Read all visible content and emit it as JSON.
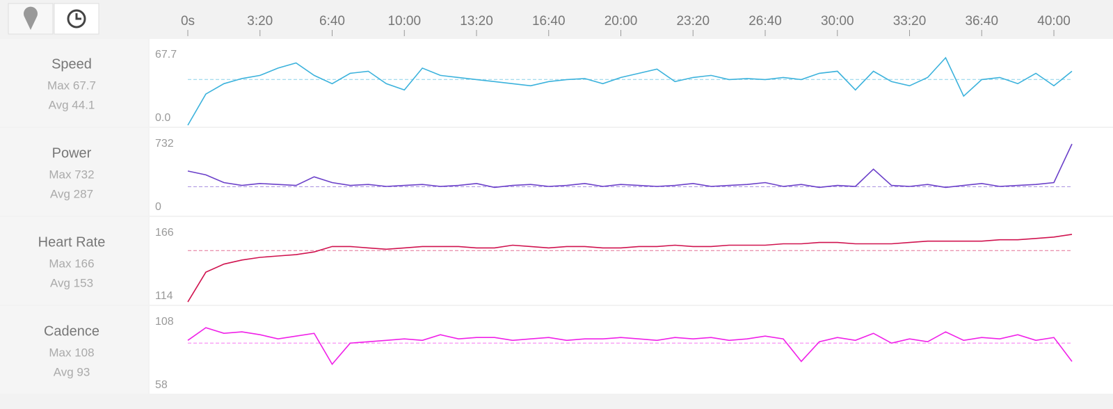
{
  "x_axis": {
    "xlim": [
      0,
      2452
    ],
    "xticks": [
      {
        "value": 0,
        "label": "0s"
      },
      {
        "value": 200,
        "label": "3:20"
      },
      {
        "value": 400,
        "label": "6:40"
      },
      {
        "value": 600,
        "label": "10:00"
      },
      {
        "value": 800,
        "label": "13:20"
      },
      {
        "value": 1000,
        "label": "16:40"
      },
      {
        "value": 1200,
        "label": "20:00"
      },
      {
        "value": 1400,
        "label": "23:20"
      },
      {
        "value": 1600,
        "label": "26:40"
      },
      {
        "value": 1800,
        "label": "30:00"
      },
      {
        "value": 2000,
        "label": "33:20"
      },
      {
        "value": 2200,
        "label": "36:40"
      },
      {
        "value": 2400,
        "label": "40:00"
      }
    ],
    "x": [
      0,
      50,
      100,
      150,
      200,
      250,
      300,
      350,
      400,
      450,
      500,
      550,
      600,
      650,
      700,
      750,
      800,
      850,
      900,
      950,
      1000,
      1050,
      1100,
      1150,
      1200,
      1250,
      1300,
      1350,
      1400,
      1450,
      1500,
      1550,
      1600,
      1650,
      1700,
      1750,
      1800,
      1850,
      1900,
      1950,
      2000,
      2050,
      2100,
      2150,
      2200,
      2250,
      2300,
      2350,
      2400,
      2450
    ]
  },
  "chart_data": [
    {
      "type": "line",
      "title": "Speed",
      "max_label": "Max 67.7",
      "avg": 44.1,
      "avg_label": "Avg 44.1",
      "color": "#3bb2dc",
      "ylim": [
        0,
        67.7
      ],
      "yticks": [
        {
          "value": 0,
          "label": "0.0"
        },
        67.7
      ],
      "values": [
        0,
        30,
        40,
        45,
        48,
        55,
        60,
        48,
        40,
        50,
        52,
        40,
        34,
        55,
        48,
        46,
        44,
        42,
        40,
        38,
        42,
        44,
        45,
        40,
        46,
        50,
        54,
        42,
        46,
        48,
        44,
        45,
        44,
        46,
        44,
        50,
        52,
        34,
        52,
        42,
        38,
        46,
        65,
        28,
        44,
        46,
        40,
        50,
        38,
        52
      ]
    },
    {
      "type": "line",
      "title": "Power",
      "max_label": "Max 732",
      "avg": 287,
      "avg_label": "Avg 287",
      "color": "#6a3fc9",
      "ylim": [
        0,
        732
      ],
      "yticks": [
        0,
        732
      ],
      "values": [
        450,
        410,
        330,
        300,
        320,
        310,
        300,
        390,
        330,
        300,
        310,
        290,
        300,
        310,
        290,
        300,
        320,
        280,
        300,
        310,
        290,
        300,
        320,
        290,
        310,
        300,
        290,
        300,
        320,
        290,
        300,
        310,
        330,
        290,
        310,
        280,
        300,
        290,
        470,
        300,
        290,
        310,
        280,
        300,
        320,
        290,
        300,
        310,
        330,
        732
      ]
    },
    {
      "type": "line",
      "title": "Heart Rate",
      "max_label": "Max 166",
      "avg": 153,
      "avg_label": "Avg 153",
      "color": "#d0134f",
      "ylim": [
        114,
        166
      ],
      "yticks": [
        114,
        166
      ],
      "values": [
        115,
        137,
        143,
        146,
        148,
        149,
        150,
        152,
        156,
        156,
        155,
        154,
        155,
        156,
        156,
        156,
        155,
        155,
        157,
        156,
        155,
        156,
        156,
        155,
        155,
        156,
        156,
        157,
        156,
        156,
        157,
        157,
        157,
        158,
        158,
        159,
        159,
        158,
        158,
        158,
        159,
        160,
        160,
        160,
        160,
        161,
        161,
        162,
        163,
        165
      ]
    },
    {
      "type": "line",
      "title": "Cadence",
      "max_label": "Max 108",
      "avg": 93,
      "avg_label": "Avg 93",
      "color": "#f020e8",
      "ylim": [
        58,
        108
      ],
      "yticks": [
        58,
        108
      ],
      "values": [
        95,
        104,
        100,
        101,
        99,
        96,
        98,
        100,
        78,
        93,
        94,
        95,
        96,
        95,
        99,
        96,
        97,
        97,
        95,
        96,
        97,
        95,
        96,
        96,
        97,
        96,
        95,
        97,
        96,
        97,
        95,
        96,
        98,
        96,
        80,
        94,
        97,
        95,
        100,
        93,
        96,
        94,
        101,
        95,
        97,
        96,
        99,
        95,
        97,
        80
      ]
    }
  ]
}
